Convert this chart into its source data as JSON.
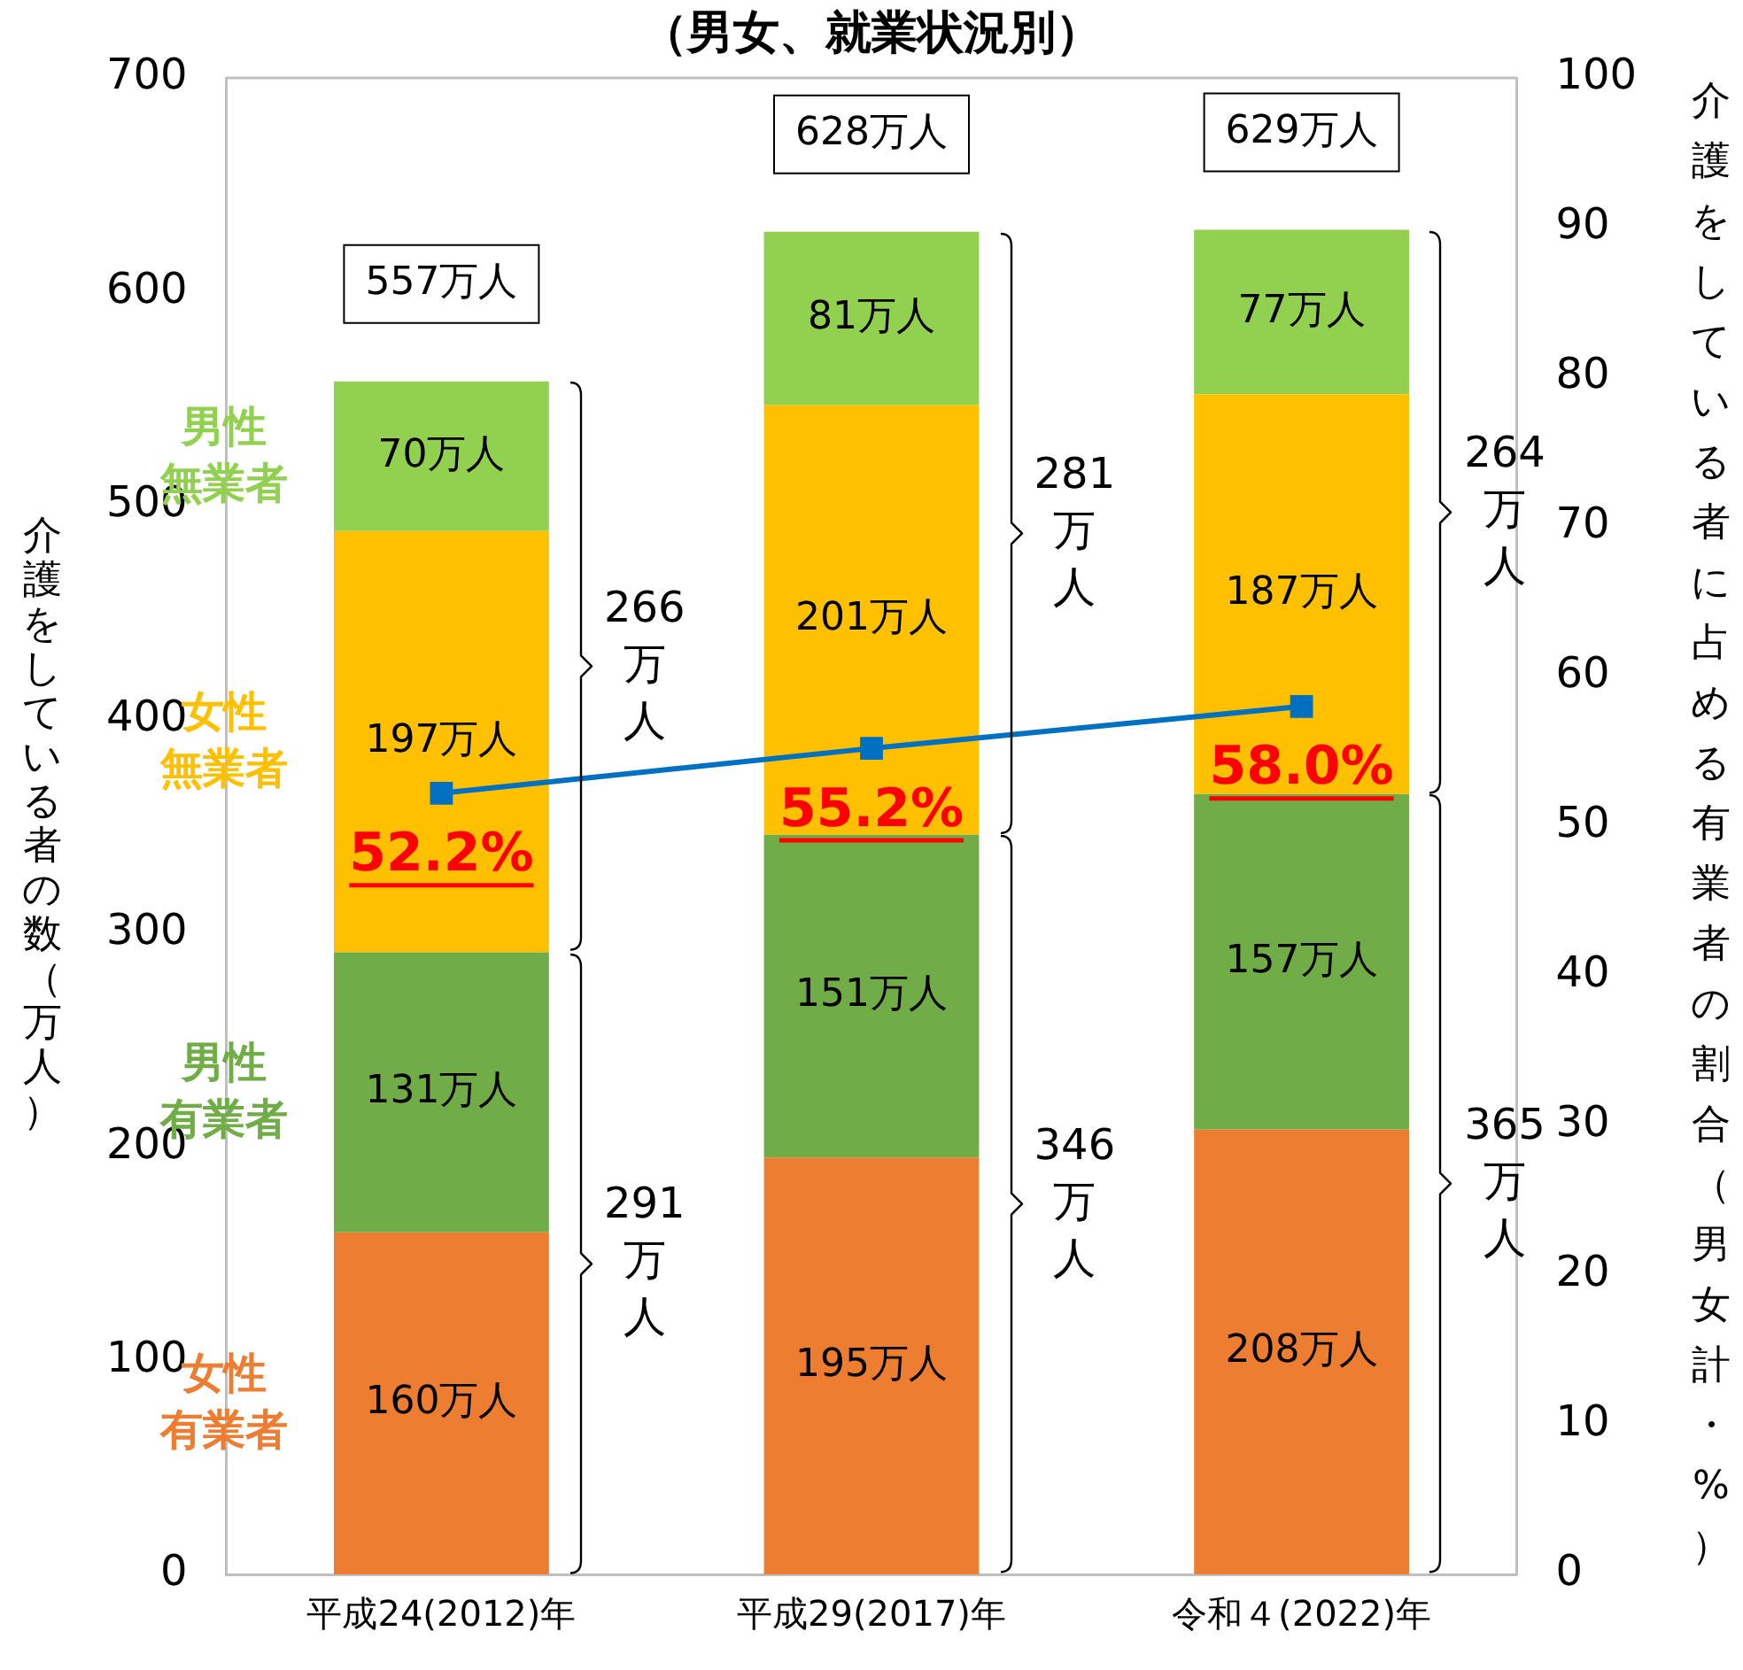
{
  "chart_data": {
    "type": "bar",
    "title": "（男女、就業状況別）",
    "ylabel": "介護をしている者の数（万人）",
    "y2label": "介護をしている者に占める有業者の割合（男女計・%）",
    "categories": [
      "平成24(2012)年",
      "平成29(2017)年",
      "令和４(2022)年"
    ],
    "stacked": true,
    "series": [
      {
        "name": "女性有業者",
        "color": "#ed7d31",
        "values": [
          160,
          195,
          208
        ],
        "value_labels": [
          "160万人",
          "195万人",
          "208万人"
        ]
      },
      {
        "name": "男性有業者",
        "color": "#70ad47",
        "values": [
          131,
          151,
          157
        ],
        "value_labels": [
          "131万人",
          "151万人",
          "157万人"
        ]
      },
      {
        "name": "女性無業者",
        "color": "#ffc000",
        "values": [
          197,
          201,
          187
        ],
        "value_labels": [
          "197万人",
          "201万人",
          "187万人"
        ]
      },
      {
        "name": "男性無業者",
        "color": "#92d050",
        "values": [
          70,
          81,
          77
        ],
        "value_labels": [
          "70万人",
          "81万人",
          "77万人"
        ]
      },
      {
        "type": "line",
        "axis": "y2",
        "color": "#0070c0",
        "marker": "square",
        "values": [
          52.2,
          55.2,
          58.0
        ],
        "value_labels": [
          "52.2%",
          "55.2%",
          "58.0%"
        ]
      }
    ],
    "totals": [
      "557万人",
      "628万人",
      "629万人"
    ],
    "annotations": [
      "291万人",
      "266万人",
      "346万人",
      "281万人",
      "365万人",
      "264万人"
    ],
    "ylim": [
      0,
      700
    ],
    "yticks": [
      0,
      100,
      200,
      300,
      400,
      500,
      600,
      700
    ],
    "y2lim": [
      0,
      100
    ],
    "y2ticks": [
      0,
      10,
      20,
      30,
      40,
      50,
      60,
      70,
      80,
      90,
      100
    ],
    "grid": false,
    "legend": false
  }
}
